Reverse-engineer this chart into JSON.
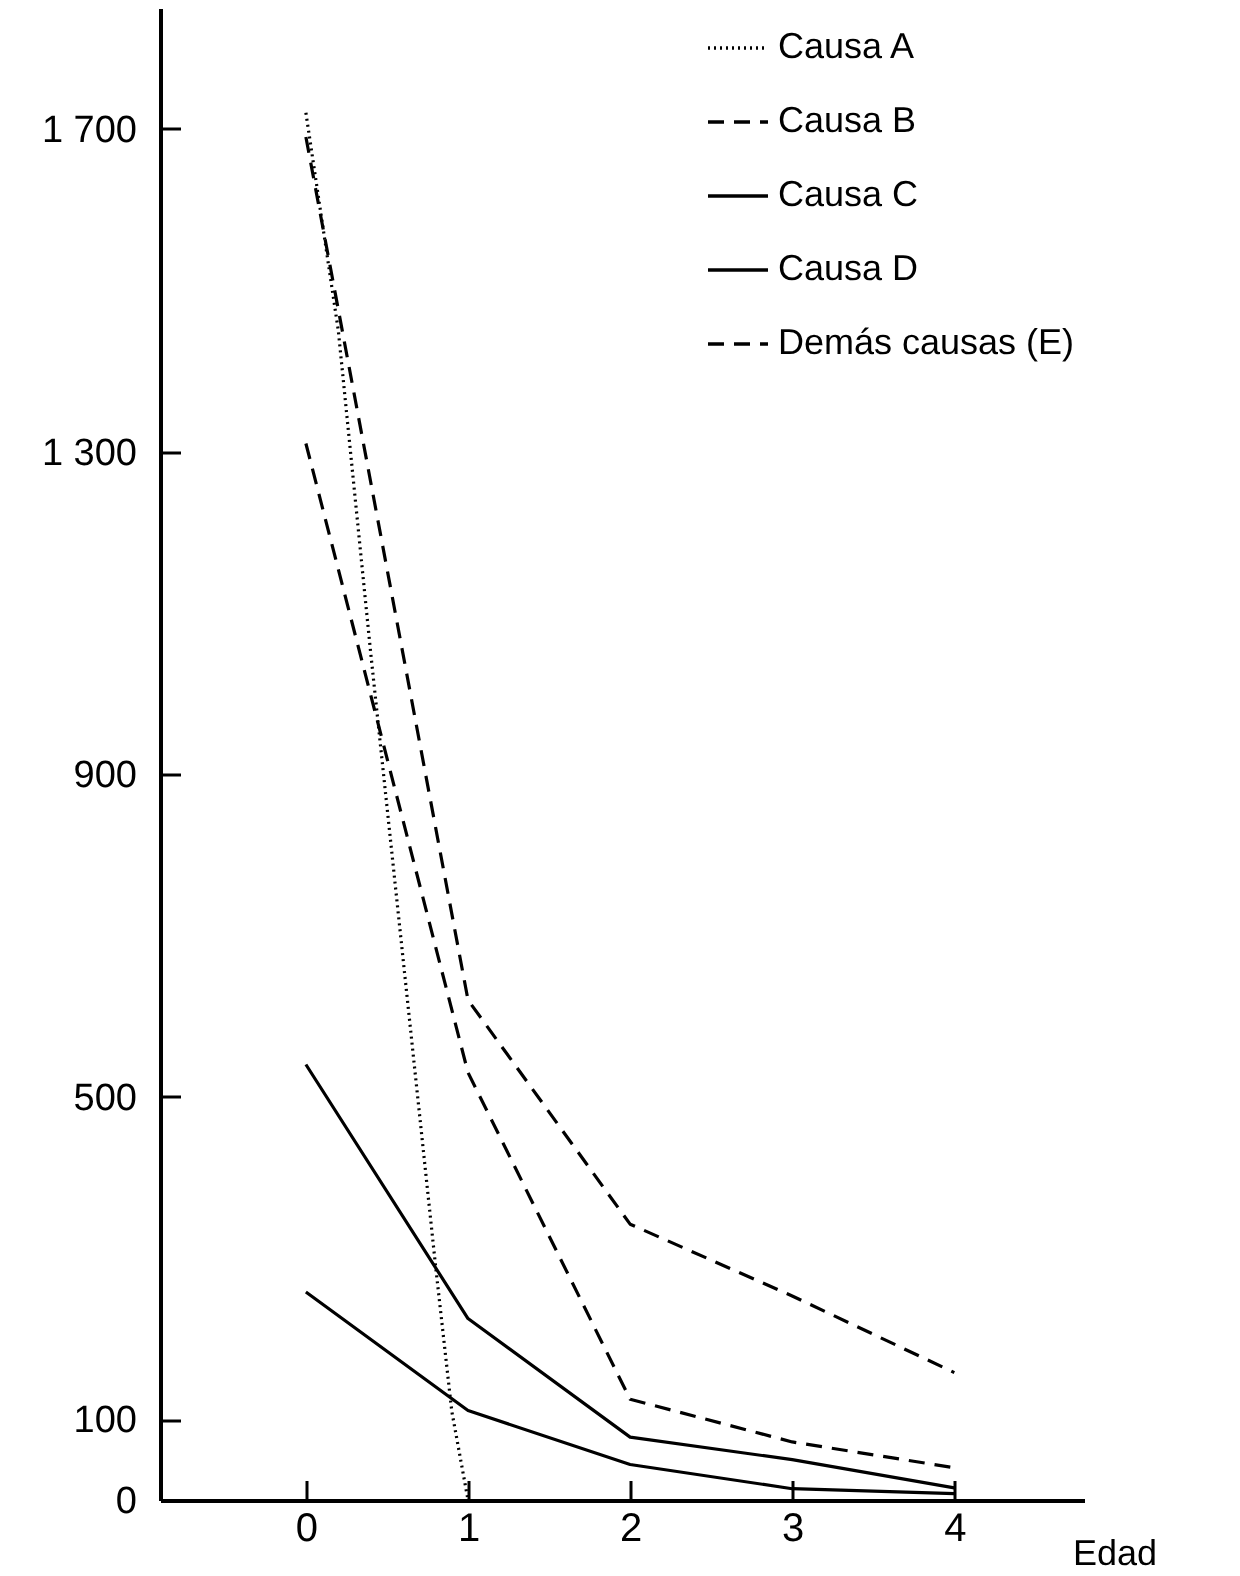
{
  "chart_data": {
    "type": "line",
    "xlabel": "Edad",
    "x": [
      0,
      1,
      2,
      3,
      4
    ],
    "xlim": [
      -0.9,
      4.8
    ],
    "xticks": [
      0,
      1,
      2,
      3,
      4
    ],
    "ylim": [
      0,
      1850
    ],
    "yticks": [
      0,
      100,
      500,
      900,
      {
        "value": 1300,
        "label": "1 300"
      },
      {
        "value": 1700,
        "label": "1 700"
      }
    ],
    "legend": "top right",
    "grid": false,
    "marker": "none",
    "series": [
      {
        "name": "Causa A",
        "color": "#000000",
        "line_style": "dotted",
        "x": [
          0,
          0.2,
          0.4,
          0.6,
          0.8,
          0.9,
          1
        ],
        "values": [
          1720,
          1450,
          1050,
          670,
          290,
          110,
          0
        ]
      },
      {
        "name": "Causa B",
        "color": "#000000",
        "line_style": "dashed",
        "values": [
          1310,
          530,
          125,
          72,
          40
        ]
      },
      {
        "name": "Causa C",
        "color": "#000000",
        "line_style": "solid",
        "values": [
          540,
          225,
          78,
          50,
          15
        ]
      },
      {
        "name": "Causa D",
        "color": "#000000",
        "line_style": "solid",
        "values": [
          258,
          111,
          44,
          14,
          8
        ]
      },
      {
        "name": "Demás causas (E)",
        "color": "#000000",
        "line_style": "dashed",
        "values": [
          1690,
          620,
          342,
          253,
          158
        ]
      }
    ]
  }
}
